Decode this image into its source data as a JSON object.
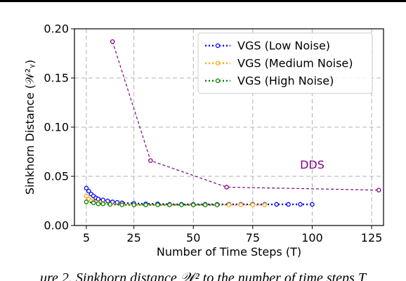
{
  "chart_data": {
    "type": "line",
    "ylabel": "Sinkhorn Distance (𝒲²ᵧ)",
    "xlabel": "Number of Time Steps (T)",
    "xlim": [
      0,
      130
    ],
    "ylim": [
      0,
      0.2
    ],
    "xticks": [
      5,
      25,
      50,
      75,
      100,
      125
    ],
    "yticks": [
      0.0,
      0.05,
      0.1,
      0.15,
      0.2
    ],
    "ytick_labels": [
      "0.00",
      "0.05",
      "0.10",
      "0.15",
      "0.20"
    ],
    "grid": true,
    "legend_position": "top-right",
    "series": [
      {
        "name": "VGS (Low Noise)",
        "color": "#0000ff",
        "linestyle": "dotted",
        "x": [
          5,
          6,
          7,
          8,
          9,
          10,
          12,
          14,
          16,
          18,
          20,
          25,
          30,
          35,
          40,
          45,
          50,
          55,
          60,
          65,
          70,
          75,
          80,
          85,
          90,
          95,
          100
        ],
        "y": [
          0.038,
          0.035,
          0.032,
          0.03,
          0.028,
          0.027,
          0.026,
          0.025,
          0.024,
          0.0235,
          0.023,
          0.0225,
          0.022,
          0.022,
          0.0215,
          0.0215,
          0.0215,
          0.0215,
          0.0215,
          0.0215,
          0.0215,
          0.0215,
          0.0215,
          0.0215,
          0.0215,
          0.0215,
          0.0215
        ]
      },
      {
        "name": "VGS (Medium Noise)",
        "color": "#ffa500",
        "linestyle": "dotted",
        "x": [
          5,
          6,
          7,
          8,
          10,
          12,
          15,
          20,
          25,
          30,
          35,
          40,
          45,
          50,
          55,
          60,
          65,
          70,
          75,
          80
        ],
        "y": [
          0.03,
          0.027,
          0.025,
          0.024,
          0.023,
          0.0225,
          0.022,
          0.0215,
          0.021,
          0.021,
          0.021,
          0.021,
          0.021,
          0.021,
          0.021,
          0.021,
          0.021,
          0.021,
          0.021,
          0.021
        ]
      },
      {
        "name": "VGS (High Noise)",
        "color": "#008000",
        "linestyle": "dotted",
        "x": [
          5,
          8,
          10,
          12,
          15,
          20,
          25,
          30,
          35,
          40,
          45,
          50,
          55,
          60
        ],
        "y": [
          0.024,
          0.023,
          0.022,
          0.022,
          0.0215,
          0.021,
          0.021,
          0.021,
          0.021,
          0.021,
          0.021,
          0.021,
          0.021,
          0.021
        ]
      },
      {
        "name": "DDS",
        "color": "#800080",
        "linestyle": "dashed",
        "x": [
          16,
          32,
          64,
          128
        ],
        "y": [
          0.187,
          0.066,
          0.039,
          0.036
        ]
      }
    ],
    "annotations": [
      {
        "text": "DDS",
        "x": 100,
        "y": 0.058,
        "color": "#800080"
      }
    ]
  },
  "legend": {
    "items": [
      {
        "label": "VGS (Low Noise)",
        "color": "#0000ff"
      },
      {
        "label": "VGS (Medium Noise)",
        "color": "#ffa500"
      },
      {
        "label": "VGS (High Noise)",
        "color": "#008000"
      }
    ]
  },
  "caption": {
    "text": "ure 2. Sinkhorn distance 𝒲² to the number of time steps T"
  }
}
